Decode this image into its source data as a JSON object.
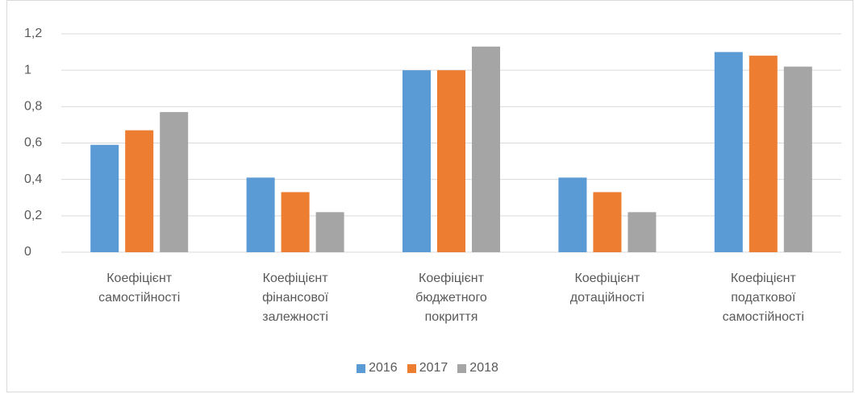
{
  "chart_data": {
    "type": "bar",
    "categories": [
      "Коефіцієнт самостійності",
      "Коефіцієнт фінансової залежності",
      "Коефіцієнт бюджетного покриття",
      "Коефіцієнт дотаційності",
      "Коефіцієнт податкової самостійності"
    ],
    "series": [
      {
        "name": "2016",
        "color": "#5b9bd5",
        "values": [
          0.59,
          0.41,
          1.0,
          0.41,
          1.1
        ]
      },
      {
        "name": "2017",
        "color": "#ed7d31",
        "values": [
          0.67,
          0.33,
          1.0,
          0.33,
          1.08
        ]
      },
      {
        "name": "2018",
        "color": "#a5a5a5",
        "values": [
          0.77,
          0.22,
          1.13,
          0.22,
          1.02
        ]
      }
    ],
    "ylim": [
      0,
      1.2
    ],
    "yticks": [
      0,
      {
        "value": 0.2,
        "label": "0,2"
      },
      {
        "value": 0.4,
        "label": "0,4"
      },
      {
        "value": 0.6,
        "label": "0,6"
      },
      {
        "value": 0.8,
        "label": "0,8"
      },
      1,
      {
        "value": 1.2,
        "label": "1,2"
      }
    ],
    "grid": true,
    "legend": "bottom"
  }
}
